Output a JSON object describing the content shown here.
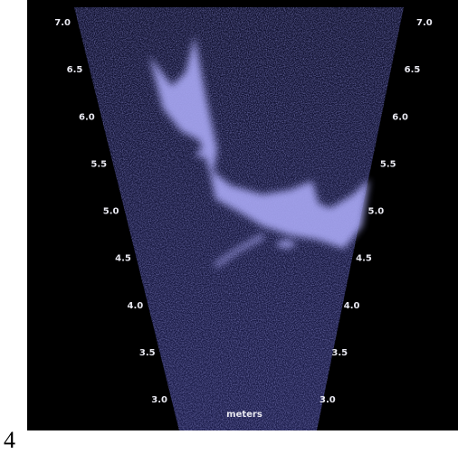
{
  "range_labels": [
    "7.0",
    "6.5",
    "6.0",
    "5.5",
    "5.0",
    "4.5",
    "4.0",
    "3.5",
    "3.0"
  ],
  "unit_label": "meters",
  "figure_number": "4"
}
